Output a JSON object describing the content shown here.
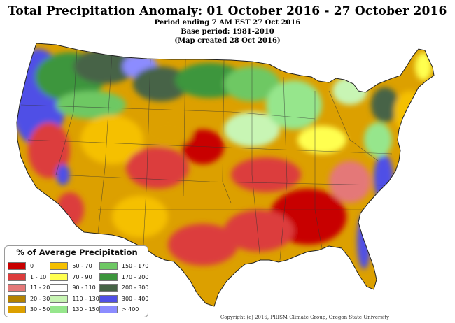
{
  "header": {
    "title": "Total Precipitation Anomaly: 01 October 2016 - 27 October 2016",
    "period": "Period ending 7 AM EST 27 Oct 2016",
    "base": "Base period: 1981-2010",
    "created": "(Map created 28 Oct 2016)"
  },
  "legend": {
    "title": "% of Average Precipitation",
    "items": [
      {
        "label": "0",
        "color": "#c80000"
      },
      {
        "label": "1 - 10",
        "color": "#dc3c3c"
      },
      {
        "label": "11 - 20",
        "color": "#e47878"
      },
      {
        "label": "20 - 30",
        "color": "#b48200"
      },
      {
        "label": "30 - 50",
        "color": "#dca000"
      },
      {
        "label": "50 - 70",
        "color": "#f5c000"
      },
      {
        "label": "70 - 90",
        "color": "#ffff50"
      },
      {
        "label": "90 - 110",
        "color": "#ffffff"
      },
      {
        "label": "110 - 130",
        "color": "#c8f5b4"
      },
      {
        "label": "130 - 150",
        "color": "#96e68c"
      },
      {
        "label": "150 - 170",
        "color": "#6ec864"
      },
      {
        "label": "170 - 200",
        "color": "#3c963c"
      },
      {
        "label": "200 - 300",
        "color": "#466446"
      },
      {
        "label": "300 - 400",
        "color": "#5050e6"
      },
      {
        "label": "> 400",
        "color": "#8c8cff"
      }
    ]
  },
  "copyright": "Copyright (c) 2016, PRISM Climate Group, Oregon State University"
}
